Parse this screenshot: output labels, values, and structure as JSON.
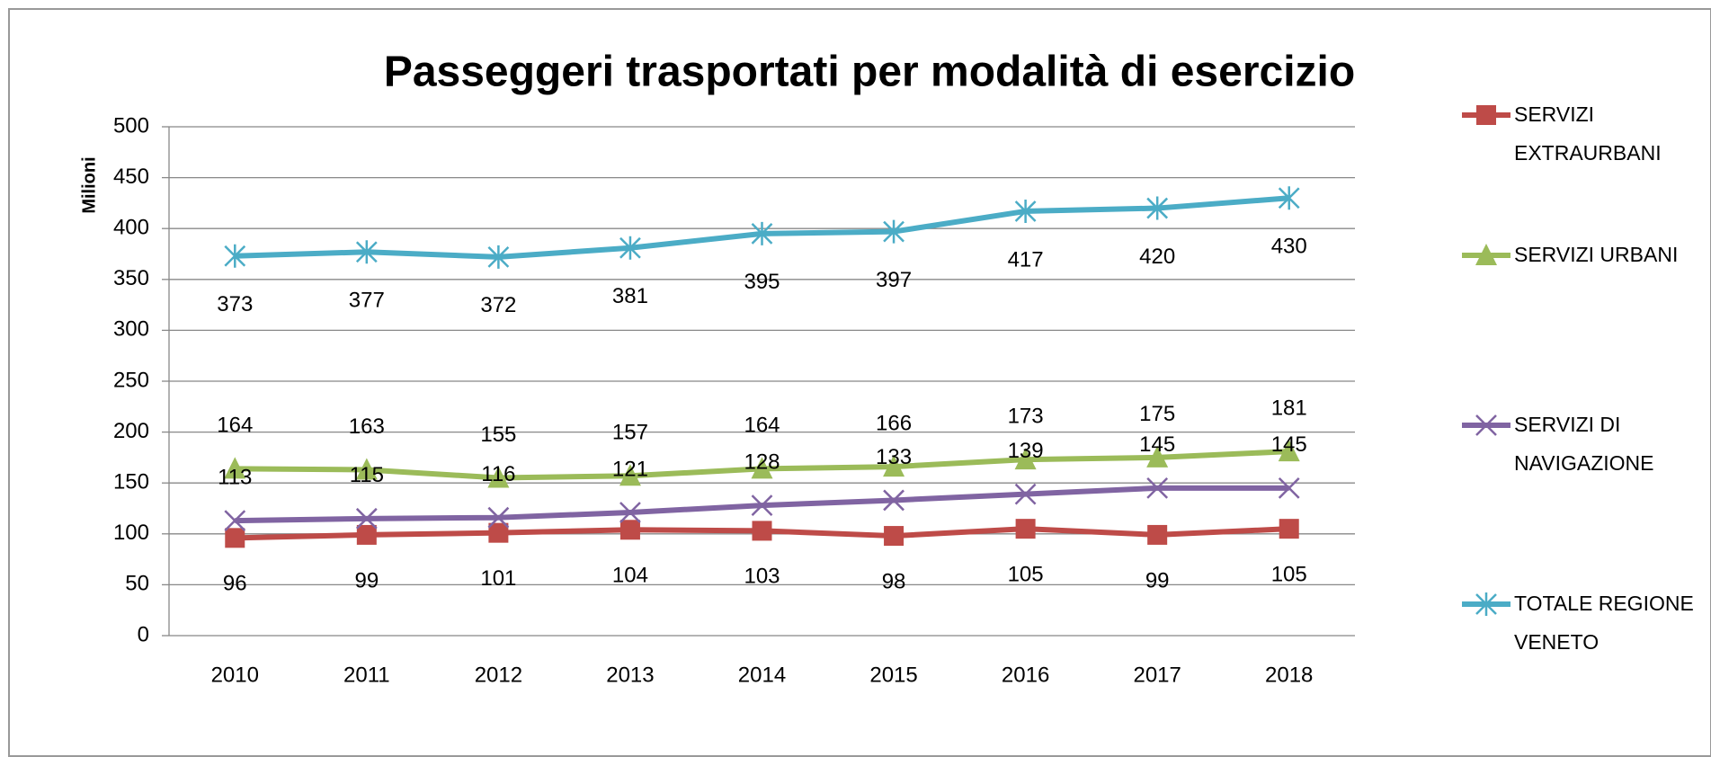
{
  "chart_data": {
    "type": "line",
    "title": "Passeggeri trasportati per modalità di esercizio",
    "y_label": "Milioni",
    "categories": [
      "2010",
      "2011",
      "2012",
      "2013",
      "2014",
      "2015",
      "2016",
      "2017",
      "2018"
    ],
    "series": [
      {
        "name": "SERVIZI EXTRAURBANI",
        "color": "#be4b48",
        "marker": "square",
        "values": [
          96,
          99,
          101,
          104,
          103,
          98,
          105,
          99,
          105
        ]
      },
      {
        "name": "SERVIZI URBANI",
        "color": "#9bbb59",
        "marker": "triangle",
        "values": [
          164,
          163,
          155,
          157,
          164,
          166,
          173,
          175,
          181
        ]
      },
      {
        "name": "SERVIZI DI NAVIGAZIONE",
        "color": "#8064a2",
        "marker": "x",
        "values": [
          113,
          115,
          116,
          121,
          128,
          133,
          139,
          145,
          145
        ]
      },
      {
        "name": "TOTALE REGIONE VENETO",
        "color": "#4bacc6",
        "marker": "asterisk",
        "values": [
          373,
          377,
          372,
          381,
          395,
          397,
          417,
          420,
          430
        ]
      }
    ],
    "ylim": [
      0,
      500
    ],
    "yticks": [
      0,
      50,
      100,
      150,
      200,
      250,
      300,
      350,
      400,
      450,
      500
    ],
    "grid": true,
    "legend": "right"
  }
}
